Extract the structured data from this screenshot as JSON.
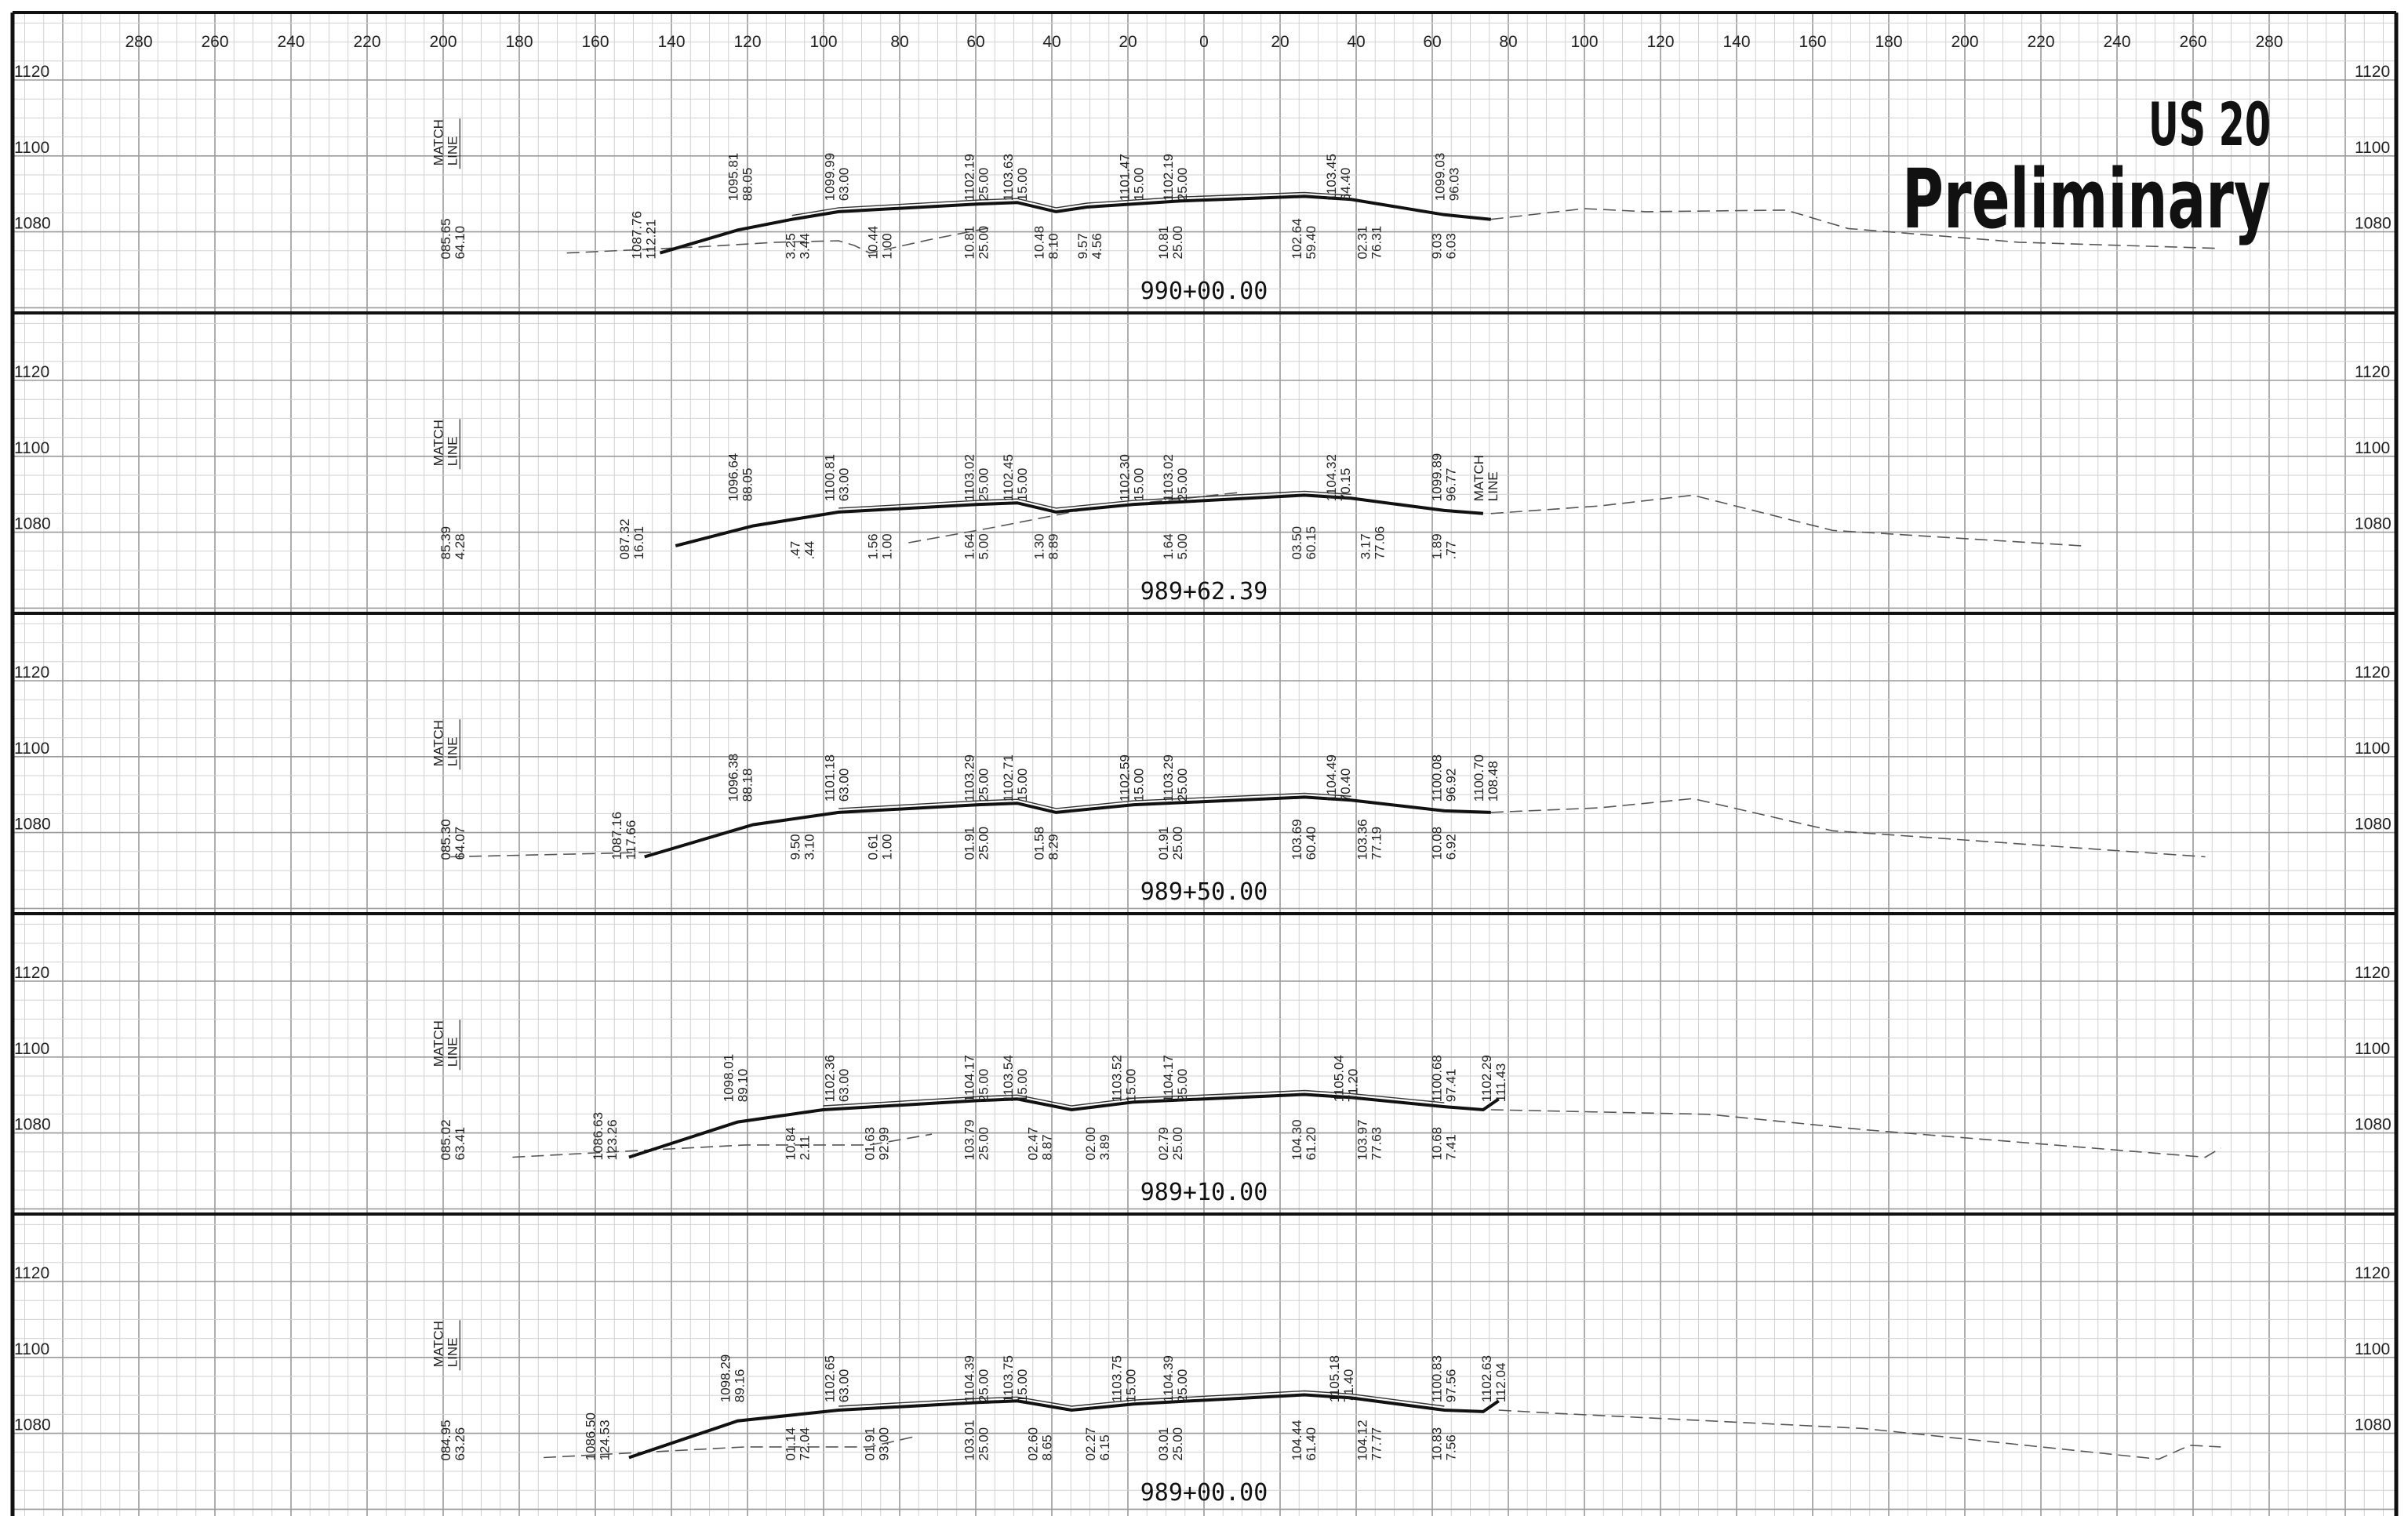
{
  "header": {
    "route": "US 20",
    "status": "Preliminary"
  },
  "offset_axis": [
    280,
    260,
    240,
    220,
    200,
    180,
    160,
    140,
    120,
    100,
    80,
    60,
    40,
    20,
    0,
    20,
    40,
    60,
    80,
    100,
    120,
    140,
    160,
    180,
    200,
    220,
    240,
    260,
    280
  ],
  "elevations": [
    1120,
    1100,
    1080
  ],
  "panels": [
    {
      "station": "990+00.00",
      "match_line": [
        "MATCH",
        "LINE"
      ],
      "labels": [
        [
          "085.65",
          "64.10"
        ],
        [
          "1087.76",
          "112.21"
        ],
        [
          "1095.81",
          "88.05"
        ],
        [
          "1099.99",
          "63.00"
        ],
        [
          "3.25",
          "3.44"
        ],
        [
          "10.44",
          "1.00"
        ],
        [
          "1102.19",
          "25.00"
        ],
        [
          "10.81",
          "25.00"
        ],
        [
          "1103.63",
          "15.00"
        ],
        [
          "10.48",
          "8.10"
        ],
        [
          "9.57",
          "4.56"
        ],
        [
          "1101.47",
          "15.00"
        ],
        [
          "10.81",
          "25.00"
        ],
        [
          "1102.19",
          "25.00"
        ],
        [
          "102.64",
          "59.40"
        ],
        [
          "1103.45",
          "64.40"
        ],
        [
          "02.31",
          "76.31"
        ],
        [
          "1099.03",
          "96.03"
        ],
        [
          "9.03",
          "6.03"
        ]
      ]
    },
    {
      "station": "989+62.39",
      "match_line": [
        "MATCH",
        "LINE"
      ],
      "labels": [
        [
          "85.39",
          "4.28"
        ],
        [
          "087.32",
          "16.01"
        ],
        [
          "1096.64",
          "88.05"
        ],
        [
          ".47",
          ".44"
        ],
        [
          "1100.81",
          "63.00"
        ],
        [
          "1.56",
          "1.00"
        ],
        [
          "1103.02",
          "25.00"
        ],
        [
          "1.64",
          "5.00"
        ],
        [
          "1102.45",
          "15.00"
        ],
        [
          "1.30",
          "8.89"
        ],
        [
          "1102.30",
          "15.00"
        ],
        [
          "1103.02",
          "25.00"
        ],
        [
          "1.64",
          "5.00"
        ],
        [
          "03.50",
          "60.15"
        ],
        [
          "1104.32",
          "70.15"
        ],
        [
          "3.17",
          "77.06"
        ],
        [
          "1099.89",
          "96.77"
        ],
        [
          "MATCH",
          "LINE"
        ],
        [
          "1.89",
          ".77"
        ]
      ]
    },
    {
      "station": "989+50.00",
      "match_line": [
        "MATCH",
        "LINE"
      ],
      "labels": [
        [
          "085.30",
          "64.07"
        ],
        [
          "1087.16",
          "117.66"
        ],
        [
          "1096.38",
          "88.18"
        ],
        [
          "9.50",
          "3.10"
        ],
        [
          "1101.18",
          "63.00"
        ],
        [
          "0.61",
          "1.00"
        ],
        [
          "1103.29",
          "25.00"
        ],
        [
          "01.91",
          "25.00"
        ],
        [
          "1102.71",
          "15.00"
        ],
        [
          "01.58",
          "8.29"
        ],
        [
          "1102.59",
          "15.00"
        ],
        [
          "1103.29",
          "25.00"
        ],
        [
          "01.91",
          "25.00"
        ],
        [
          "103.69",
          "60.40"
        ],
        [
          "1104.49",
          "70.40"
        ],
        [
          "103.36",
          "77.19"
        ],
        [
          "1100.08",
          "96.92"
        ],
        [
          "1100.70",
          "108.48"
        ],
        [
          "10.08",
          "6.92"
        ]
      ]
    },
    {
      "station": "989+10.00",
      "match_line": [
        "MATCH",
        "LINE"
      ],
      "labels": [
        [
          "085.02",
          "63.41"
        ],
        [
          "1086.63",
          "123.26"
        ],
        [
          "1098.01",
          "89.10"
        ],
        [
          "10.84",
          "2.11"
        ],
        [
          "1102.36",
          "63.00"
        ],
        [
          "01.63",
          "92.99"
        ],
        [
          "1104.17",
          "25.00"
        ],
        [
          "103.79",
          "25.00"
        ],
        [
          "1103.54",
          "15.00"
        ],
        [
          "02.47",
          "8.87"
        ],
        [
          "02.00",
          "3.89"
        ],
        [
          "1103.52",
          "15.00"
        ],
        [
          "1104.17",
          "25.00"
        ],
        [
          "02.79",
          "25.00"
        ],
        [
          "104.30",
          "61.20"
        ],
        [
          "1105.04",
          "71.20"
        ],
        [
          "103.97",
          "77.63"
        ],
        [
          "1100.68",
          "97.41"
        ],
        [
          "1102.29",
          "111.43"
        ],
        [
          "10.68",
          "7.41"
        ]
      ]
    },
    {
      "station": "989+00.00",
      "match_line": [
        "MATCH",
        "LINE"
      ],
      "labels": [
        [
          "084.95",
          "63.26"
        ],
        [
          "1086.50",
          "124.53"
        ],
        [
          "1098.29",
          "89.16"
        ],
        [
          "01.14",
          "72.04"
        ],
        [
          "1102.65",
          "63.00"
        ],
        [
          "01.91",
          "93.00"
        ],
        [
          "1104.39",
          "25.00"
        ],
        [
          "103.01",
          "25.00"
        ],
        [
          "1103.75",
          "15.00"
        ],
        [
          "02.60",
          "8.65"
        ],
        [
          "02.27",
          "6.15"
        ],
        [
          "1103.75",
          "15.00"
        ],
        [
          "1104.39",
          "25.00"
        ],
        [
          "03.01",
          "25.00"
        ],
        [
          "104.44",
          "61.40"
        ],
        [
          "1105.18",
          "71.40"
        ],
        [
          "104.12",
          "77.77"
        ],
        [
          "1100.83",
          "97.56"
        ],
        [
          "1102.63",
          "112.04"
        ],
        [
          "10.83",
          "7.56"
        ]
      ]
    }
  ]
}
